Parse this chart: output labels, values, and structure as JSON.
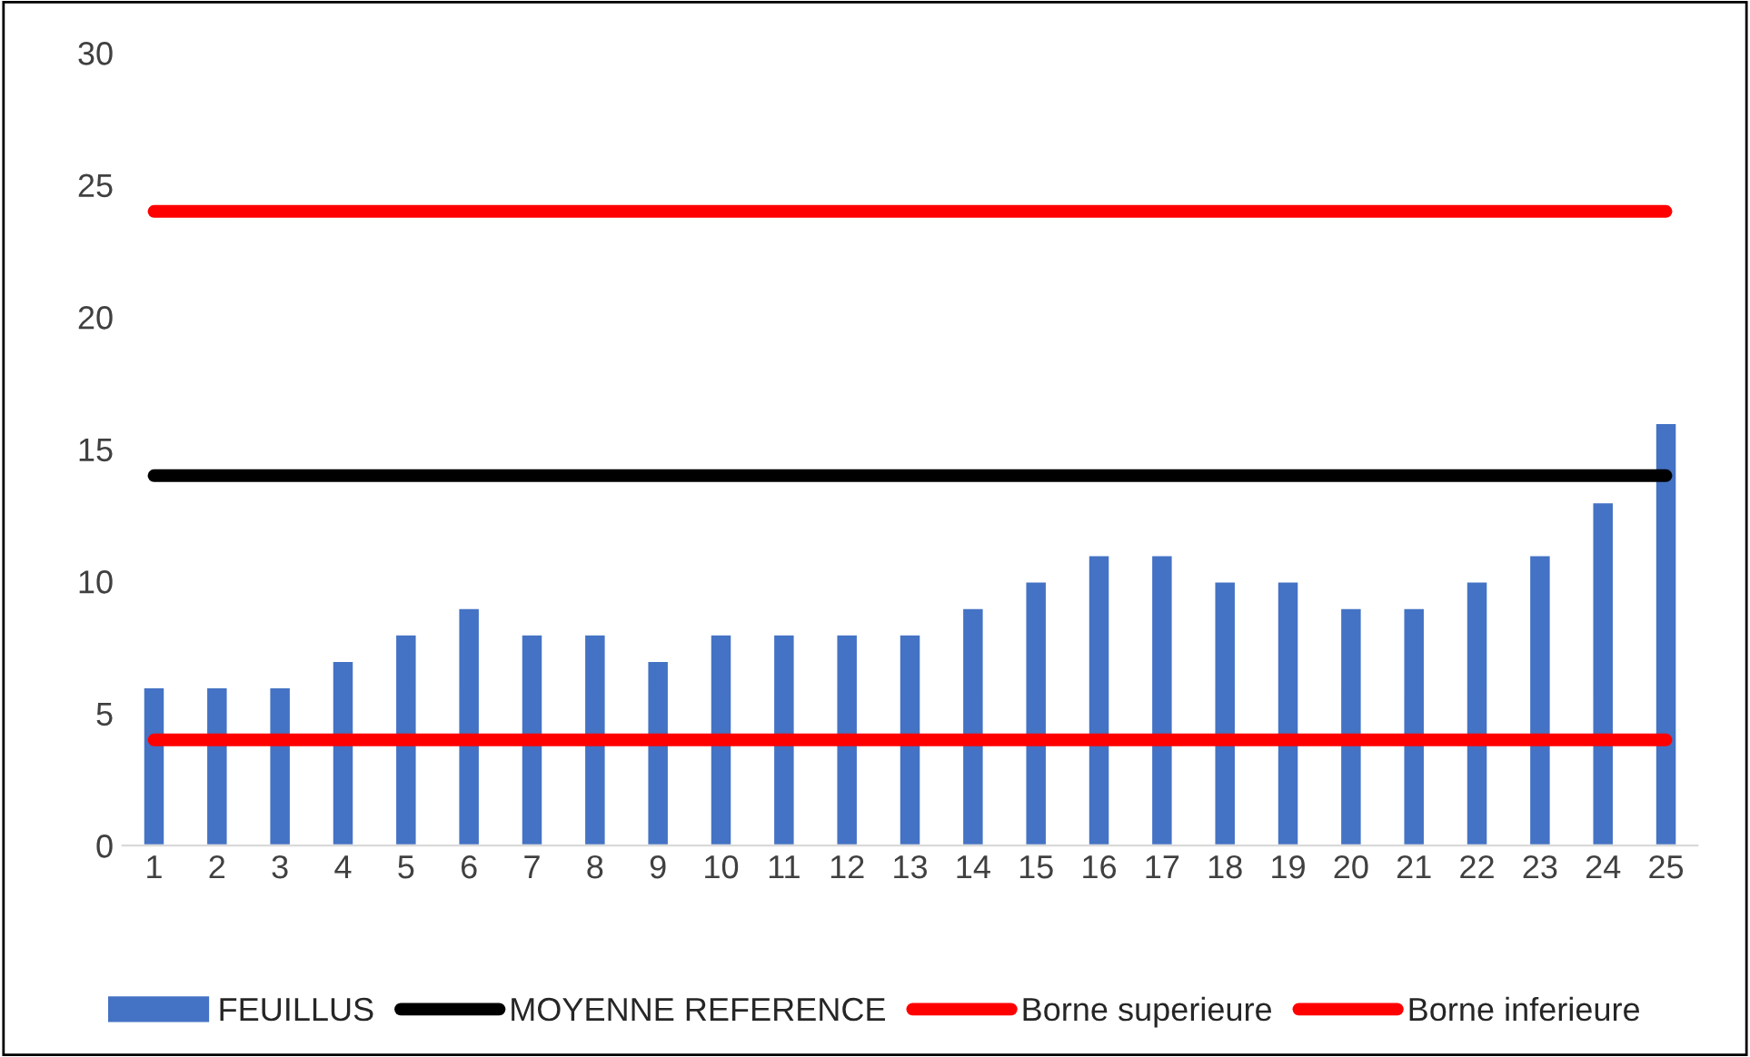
{
  "chart_data": {
    "type": "bar",
    "categories": [
      "1",
      "2",
      "3",
      "4",
      "5",
      "6",
      "7",
      "8",
      "9",
      "10",
      "11",
      "12",
      "13",
      "14",
      "15",
      "16",
      "17",
      "18",
      "19",
      "20",
      "21",
      "22",
      "23",
      "24",
      "25"
    ],
    "series": [
      {
        "name": "FEUILLUS",
        "color": "#4472c4",
        "values": [
          6,
          6,
          6,
          7,
          8,
          9,
          8,
          8,
          7,
          8,
          8,
          8,
          8,
          9,
          10,
          11,
          11,
          10,
          10,
          9,
          9,
          10,
          11,
          13,
          16
        ]
      },
      {
        "name": "MOYENNE REFERENCE",
        "type": "line",
        "color": "#000000",
        "values": [
          14,
          14,
          14,
          14,
          14,
          14,
          14,
          14,
          14,
          14,
          14,
          14,
          14,
          14,
          14,
          14,
          14,
          14,
          14,
          14,
          14,
          14,
          14,
          14,
          14
        ]
      },
      {
        "name": "Borne superieure",
        "type": "line",
        "color": "#ff0000",
        "values": [
          24,
          24,
          24,
          24,
          24,
          24,
          24,
          24,
          24,
          24,
          24,
          24,
          24,
          24,
          24,
          24,
          24,
          24,
          24,
          24,
          24,
          24,
          24,
          24,
          24
        ]
      },
      {
        "name": "Borne inferieure",
        "type": "line",
        "color": "#ff0000",
        "values": [
          4,
          4,
          4,
          4,
          4,
          4,
          4,
          4,
          4,
          4,
          4,
          4,
          4,
          4,
          4,
          4,
          4,
          4,
          4,
          4,
          4,
          4,
          4,
          4,
          4
        ]
      }
    ],
    "ylim": [
      0,
      30
    ],
    "yticks": [
      0,
      5,
      10,
      15,
      20,
      25,
      30
    ],
    "grid": false,
    "legend": "bottom"
  }
}
